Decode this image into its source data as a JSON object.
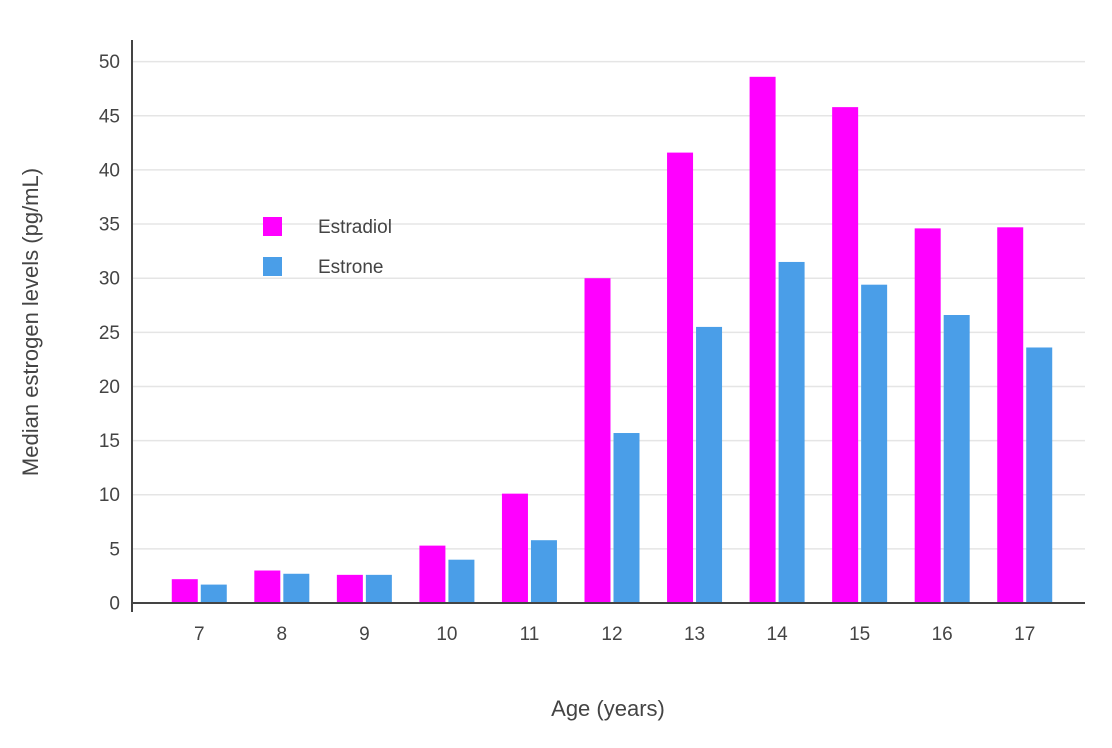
{
  "chart_data": {
    "type": "bar",
    "title": "",
    "xlabel": "Age (years)",
    "ylabel": "Median estrogen levels (pg/mL)",
    "categories": [
      "7",
      "8",
      "9",
      "10",
      "11",
      "12",
      "13",
      "14",
      "15",
      "16",
      "17"
    ],
    "series": [
      {
        "name": "Estradiol",
        "color": "#FF00FF",
        "values": [
          2.2,
          3.0,
          2.6,
          5.3,
          10.1,
          30.0,
          41.6,
          48.6,
          45.8,
          34.6,
          34.7
        ]
      },
      {
        "name": "Estrone",
        "color": "#4A9EE8",
        "values": [
          1.7,
          2.7,
          2.6,
          4.0,
          5.8,
          15.7,
          25.5,
          31.5,
          29.4,
          26.6,
          23.6
        ]
      }
    ],
    "yticks": [
      0,
      5,
      10,
      15,
      20,
      25,
      30,
      35,
      40,
      45,
      50
    ],
    "ylim": [
      0,
      52
    ],
    "grid": true,
    "legend_position": "inside-left",
    "colors": {
      "axis": "#444444",
      "grid": "#E5E5E5",
      "text": "#444444",
      "background": "#FFFFFF"
    }
  }
}
